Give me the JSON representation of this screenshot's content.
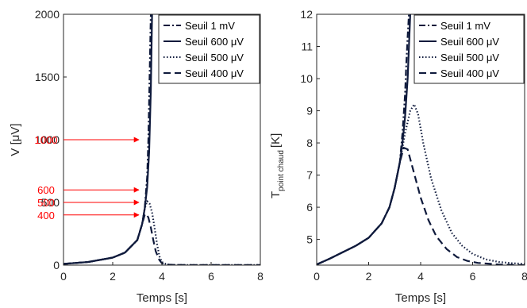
{
  "chart_data": [
    {
      "type": "line",
      "xlabel": "Temps [s]",
      "ylabel": "V [μV]",
      "xlim": [
        0,
        8
      ],
      "ylim": [
        0,
        2000
      ],
      "xticks": [
        "0",
        "2",
        "4",
        "6",
        "8"
      ],
      "yticks": [
        "0",
        "500",
        "1000",
        "1500",
        "2000"
      ],
      "grid": false,
      "legend_position": "top-right",
      "series": [
        {
          "name": "Seuil 1 mV",
          "style": "dashdot",
          "x": [
            0,
            1,
            2,
            2.5,
            3,
            3.2,
            3.3,
            3.4,
            3.45,
            3.5,
            3.55
          ],
          "y": [
            10,
            25,
            60,
            100,
            200,
            330,
            450,
            700,
            1000,
            1500,
            2000
          ]
        },
        {
          "name": "Seuil 600 μV",
          "style": "solid",
          "x": [
            0,
            1,
            2,
            2.5,
            3,
            3.2,
            3.3,
            3.4,
            3.48,
            3.55,
            3.6
          ],
          "y": [
            10,
            25,
            60,
            100,
            200,
            330,
            450,
            620,
            900,
            1400,
            2000
          ]
        },
        {
          "name": "Seuil 500 μV",
          "style": "dotted",
          "x": [
            0,
            1,
            2,
            2.5,
            3,
            3.2,
            3.3,
            3.4,
            3.5,
            3.6,
            3.7,
            3.8,
            3.9,
            4.0,
            4.2,
            4.5,
            5,
            6,
            7,
            8
          ],
          "y": [
            10,
            25,
            60,
            100,
            200,
            330,
            450,
            510,
            490,
            420,
            300,
            170,
            70,
            25,
            5,
            2,
            1,
            1,
            1,
            1
          ]
        },
        {
          "name": "Seuil 400 μV",
          "style": "dashed",
          "x": [
            0,
            1,
            2,
            2.5,
            3,
            3.2,
            3.3,
            3.35,
            3.45,
            3.55,
            3.65,
            3.75,
            3.9,
            4.0,
            4.2,
            4.5,
            5,
            6,
            7,
            8
          ],
          "y": [
            10,
            25,
            60,
            100,
            200,
            330,
            400,
            410,
            380,
            300,
            200,
            110,
            40,
            15,
            4,
            2,
            1,
            1,
            1,
            1
          ]
        }
      ],
      "annotations": [
        {
          "text": "1000",
          "value": 1000
        },
        {
          "text": "600",
          "value": 600
        },
        {
          "text": "500",
          "value": 500
        },
        {
          "text": "400",
          "value": 400
        }
      ]
    },
    {
      "type": "line",
      "xlabel": "Temps [s]",
      "ylabel": "T",
      "ylabel_sub": "point chaud",
      "ylabel_unit": "[K]",
      "xlim": [
        0,
        8
      ],
      "ylim": [
        4.2,
        12
      ],
      "xticks": [
        "0",
        "2",
        "4",
        "6",
        "8"
      ],
      "yticks": [
        "5",
        "6",
        "7",
        "8",
        "9",
        "10",
        "11",
        "12"
      ],
      "grid": false,
      "legend_position": "top-right",
      "series": [
        {
          "name": "Seuil 1 mV",
          "style": "dashdot",
          "x": [
            0,
            0.5,
            1,
            1.5,
            2,
            2.5,
            2.8,
            3.0,
            3.2,
            3.3,
            3.4,
            3.45,
            3.5,
            3.55
          ],
          "y": [
            4.22,
            4.4,
            4.6,
            4.8,
            5.05,
            5.5,
            6.0,
            6.6,
            7.4,
            8.3,
            9.5,
            10.5,
            11.3,
            12
          ]
        },
        {
          "name": "Seuil 600 μV",
          "style": "solid",
          "x": [
            0,
            0.5,
            1,
            1.5,
            2,
            2.5,
            2.8,
            3.0,
            3.2,
            3.3,
            3.4,
            3.5,
            3.55,
            3.6
          ],
          "y": [
            4.22,
            4.4,
            4.6,
            4.8,
            5.05,
            5.5,
            6.0,
            6.6,
            7.4,
            8.0,
            8.8,
            10.0,
            11.0,
            12
          ]
        },
        {
          "name": "Seuil 500 μV",
          "style": "dotted",
          "x": [
            0,
            0.5,
            1,
            1.5,
            2,
            2.5,
            2.8,
            3.0,
            3.2,
            3.4,
            3.6,
            3.75,
            3.9,
            4.1,
            4.4,
            4.8,
            5.2,
            5.6,
            6.0,
            6.5,
            7.0,
            7.5,
            8.0
          ],
          "y": [
            4.22,
            4.4,
            4.6,
            4.8,
            5.05,
            5.5,
            6.0,
            6.6,
            7.4,
            8.3,
            9.0,
            9.2,
            8.9,
            8.0,
            6.9,
            5.9,
            5.2,
            4.8,
            4.55,
            4.38,
            4.3,
            4.26,
            4.24
          ]
        },
        {
          "name": "Seuil 400 μV",
          "style": "dashed",
          "x": [
            0,
            0.5,
            1,
            1.5,
            2,
            2.5,
            2.8,
            3.0,
            3.2,
            3.35,
            3.5,
            3.7,
            4.0,
            4.3,
            4.6,
            5.0,
            5.4,
            5.8,
            6.2,
            7.0,
            8.0
          ],
          "y": [
            4.22,
            4.4,
            4.6,
            4.8,
            5.05,
            5.5,
            6.0,
            6.6,
            7.4,
            7.85,
            7.8,
            7.2,
            6.3,
            5.6,
            5.1,
            4.7,
            4.45,
            4.33,
            4.27,
            4.22,
            4.2
          ]
        }
      ]
    }
  ]
}
